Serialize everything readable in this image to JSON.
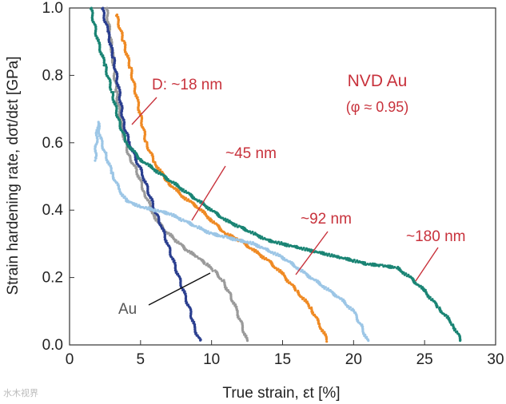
{
  "chart_data": {
    "type": "scatter",
    "title": "NVD Au",
    "subtitle": "(φ ≈ 0.95)",
    "xlabel": "True strain, εt  [%]",
    "ylabel": "Strain hardening rate, dσt/dεt  [GPa]",
    "xlim": [
      0,
      30
    ],
    "ylim": [
      0,
      1.0
    ],
    "x_ticks": [
      "0",
      "5",
      "10",
      "15",
      "20",
      "25",
      "30"
    ],
    "y_ticks": [
      "0.0",
      "0.2",
      "0.4",
      "0.6",
      "0.8",
      "1.0"
    ],
    "series": [
      {
        "name": "Au",
        "color": "#9a9a9a",
        "label": "Au",
        "points": [
          [
            2.6,
            1.0
          ],
          [
            3.0,
            0.87
          ],
          [
            3.3,
            0.75
          ],
          [
            3.7,
            0.64
          ],
          [
            4.2,
            0.56
          ],
          [
            4.7,
            0.52
          ],
          [
            5.3,
            0.45
          ],
          [
            6.0,
            0.38
          ],
          [
            6.7,
            0.34
          ],
          [
            7.5,
            0.31
          ],
          [
            8.3,
            0.28
          ],
          [
            9.0,
            0.26
          ],
          [
            9.6,
            0.24
          ],
          [
            10.2,
            0.22
          ],
          [
            10.8,
            0.19
          ],
          [
            11.3,
            0.15
          ],
          [
            11.8,
            0.1
          ],
          [
            12.2,
            0.05
          ],
          [
            12.5,
            0.01
          ]
        ]
      },
      {
        "name": "D: ~18 nm",
        "color": "#2b3f8f",
        "label": "D: ~18 nm",
        "points": [
          [
            2.3,
            1.0
          ],
          [
            2.7,
            0.93
          ],
          [
            3.1,
            0.85
          ],
          [
            3.5,
            0.75
          ],
          [
            3.8,
            0.66
          ],
          [
            4.2,
            0.6
          ],
          [
            4.7,
            0.55
          ],
          [
            5.2,
            0.5
          ],
          [
            5.6,
            0.45
          ],
          [
            6.0,
            0.4
          ],
          [
            6.5,
            0.35
          ],
          [
            6.9,
            0.3
          ],
          [
            7.3,
            0.25
          ],
          [
            7.7,
            0.2
          ],
          [
            8.1,
            0.15
          ],
          [
            8.5,
            0.1
          ],
          [
            8.8,
            0.05
          ],
          [
            9.2,
            0.01
          ]
        ]
      },
      {
        "name": "~45 nm",
        "color": "#ef8a24",
        "label": "~45 nm",
        "points": [
          [
            3.3,
            0.98
          ],
          [
            3.8,
            0.9
          ],
          [
            4.3,
            0.82
          ],
          [
            4.8,
            0.72
          ],
          [
            5.4,
            0.6
          ],
          [
            6.0,
            0.54
          ],
          [
            7.0,
            0.48
          ],
          [
            8.0,
            0.44
          ],
          [
            9.0,
            0.41
          ],
          [
            10.0,
            0.37
          ],
          [
            11.0,
            0.33
          ],
          [
            12.0,
            0.31
          ],
          [
            13.0,
            0.28
          ],
          [
            14.0,
            0.25
          ],
          [
            15.0,
            0.21
          ],
          [
            16.0,
            0.16
          ],
          [
            17.0,
            0.11
          ],
          [
            17.6,
            0.06
          ],
          [
            18.2,
            0.01
          ]
        ]
      },
      {
        "name": "~92 nm",
        "color": "#9cc6e6",
        "label": "~92 nm",
        "points": [
          [
            1.8,
            0.55
          ],
          [
            2.0,
            0.66
          ],
          [
            2.2,
            0.61
          ],
          [
            2.5,
            0.57
          ],
          [
            3.0,
            0.51
          ],
          [
            3.5,
            0.46
          ],
          [
            4.0,
            0.43
          ],
          [
            4.5,
            0.42
          ],
          [
            5.0,
            0.41
          ],
          [
            6.0,
            0.4
          ],
          [
            7.0,
            0.39
          ],
          [
            8.0,
            0.37
          ],
          [
            9.0,
            0.35
          ],
          [
            10.0,
            0.33
          ],
          [
            11.0,
            0.32
          ],
          [
            12.0,
            0.31
          ],
          [
            13.0,
            0.3
          ],
          [
            14.0,
            0.28
          ],
          [
            15.0,
            0.26
          ],
          [
            16.0,
            0.23
          ],
          [
            17.0,
            0.2
          ],
          [
            18.0,
            0.17
          ],
          [
            19.0,
            0.14
          ],
          [
            20.0,
            0.1
          ],
          [
            20.5,
            0.06
          ],
          [
            21.0,
            0.01
          ]
        ]
      },
      {
        "name": "~180 nm",
        "color": "#1a8474",
        "label": "~180 nm",
        "points": [
          [
            1.5,
            1.0
          ],
          [
            2.0,
            0.9
          ],
          [
            2.5,
            0.83
          ],
          [
            3.0,
            0.75
          ],
          [
            3.5,
            0.66
          ],
          [
            4.0,
            0.6
          ],
          [
            5.0,
            0.55
          ],
          [
            6.0,
            0.52
          ],
          [
            7.0,
            0.49
          ],
          [
            8.0,
            0.46
          ],
          [
            9.0,
            0.43
          ],
          [
            10.0,
            0.4
          ],
          [
            11.0,
            0.37
          ],
          [
            12.0,
            0.35
          ],
          [
            13.0,
            0.33
          ],
          [
            14.0,
            0.31
          ],
          [
            15.0,
            0.3
          ],
          [
            16.0,
            0.29
          ],
          [
            17.0,
            0.28
          ],
          [
            18.0,
            0.27
          ],
          [
            19.0,
            0.26
          ],
          [
            20.0,
            0.25
          ],
          [
            21.0,
            0.24
          ],
          [
            22.0,
            0.235
          ],
          [
            23.0,
            0.23
          ],
          [
            24.0,
            0.2
          ],
          [
            25.0,
            0.16
          ],
          [
            26.0,
            0.11
          ],
          [
            27.0,
            0.06
          ],
          [
            27.6,
            0.01
          ]
        ]
      }
    ]
  },
  "watermark": "水木视界"
}
